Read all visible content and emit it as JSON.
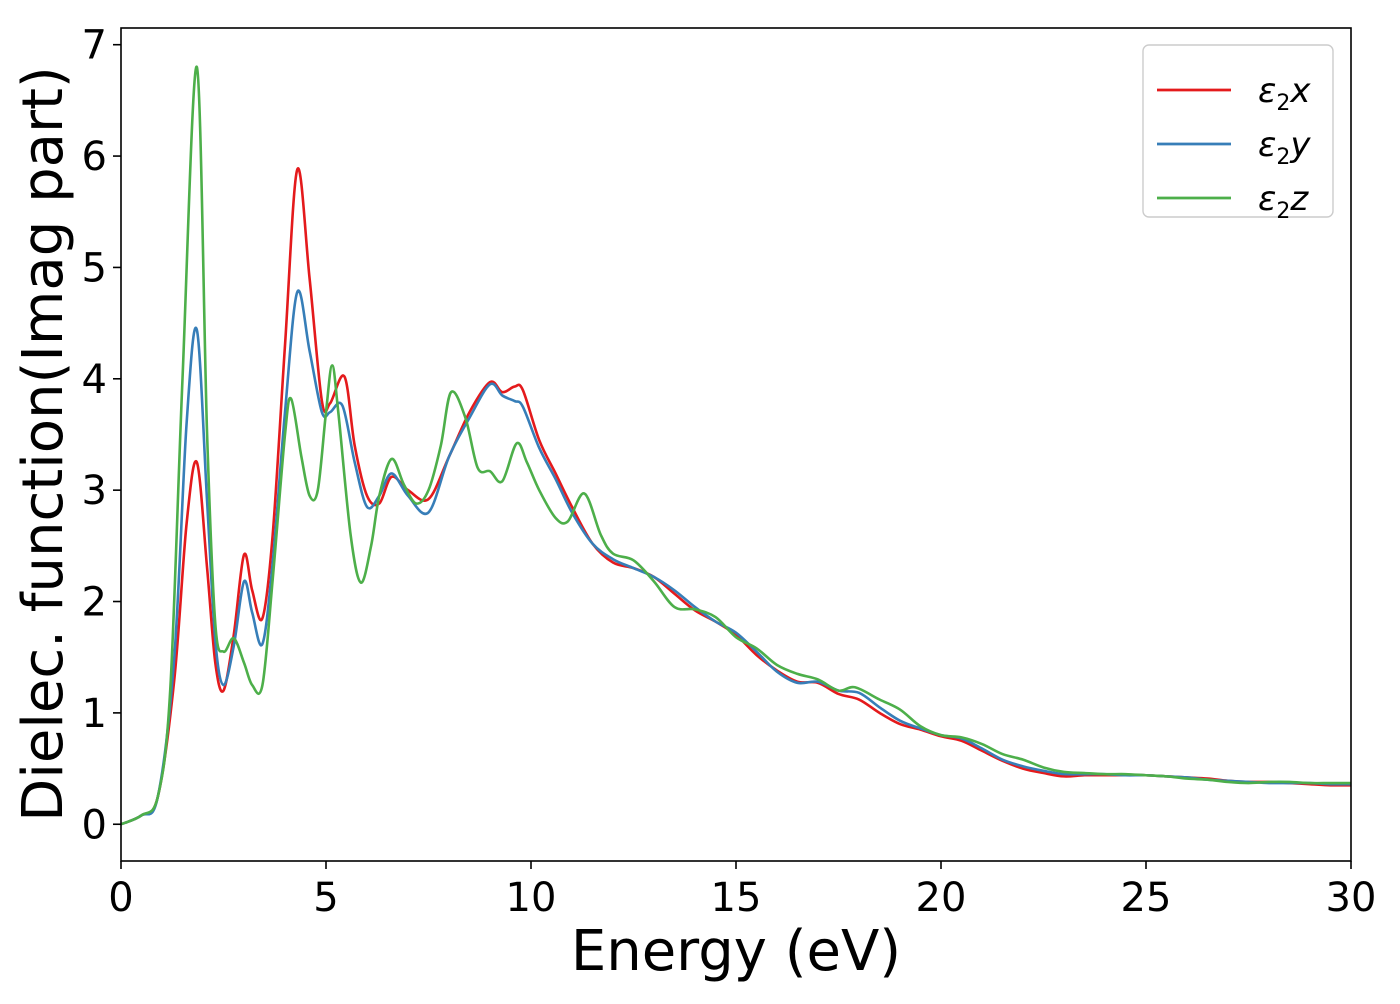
{
  "chart_data": {
    "type": "line",
    "title": "",
    "xlabel": "Energy (eV)",
    "ylabel": "Dielec. function(Imag part)",
    "xlim": [
      0,
      30
    ],
    "ylim": [
      -0.33,
      7.15
    ],
    "xticks": [
      0,
      5,
      10,
      15,
      20,
      25,
      30
    ],
    "yticks": [
      0,
      1,
      2,
      3,
      4,
      5,
      6,
      7
    ],
    "grid": false,
    "legend_position": "top-right",
    "series": [
      {
        "name": "ε2x",
        "symbol": "ε",
        "subscript": "2",
        "component": "x",
        "color": "#e41a1c",
        "points": [
          [
            0,
            0
          ],
          [
            0.5,
            0.08
          ],
          [
            0.9,
            0.25
          ],
          [
            1.3,
            1.3
          ],
          [
            1.6,
            2.7
          ],
          [
            1.85,
            3.25
          ],
          [
            2.1,
            2.3
          ],
          [
            2.3,
            1.45
          ],
          [
            2.5,
            1.2
          ],
          [
            2.75,
            1.7
          ],
          [
            3.0,
            2.42
          ],
          [
            3.2,
            2.1
          ],
          [
            3.45,
            1.85
          ],
          [
            3.7,
            2.6
          ],
          [
            4.0,
            4.3
          ],
          [
            4.3,
            5.88
          ],
          [
            4.6,
            4.9
          ],
          [
            4.9,
            3.8
          ],
          [
            5.1,
            3.78
          ],
          [
            5.45,
            4.02
          ],
          [
            5.7,
            3.4
          ],
          [
            6.0,
            2.95
          ],
          [
            6.3,
            2.88
          ],
          [
            6.6,
            3.12
          ],
          [
            7.0,
            3.0
          ],
          [
            7.5,
            2.92
          ],
          [
            8.0,
            3.3
          ],
          [
            8.5,
            3.7
          ],
          [
            9.0,
            3.97
          ],
          [
            9.3,
            3.88
          ],
          [
            9.6,
            3.93
          ],
          [
            9.8,
            3.9
          ],
          [
            10.2,
            3.45
          ],
          [
            10.6,
            3.15
          ],
          [
            11.0,
            2.85
          ],
          [
            11.5,
            2.52
          ],
          [
            12.0,
            2.35
          ],
          [
            12.5,
            2.3
          ],
          [
            13.0,
            2.22
          ],
          [
            13.5,
            2.07
          ],
          [
            14.0,
            1.92
          ],
          [
            14.5,
            1.82
          ],
          [
            15.0,
            1.7
          ],
          [
            15.5,
            1.52
          ],
          [
            16.0,
            1.38
          ],
          [
            16.5,
            1.28
          ],
          [
            17.0,
            1.27
          ],
          [
            17.5,
            1.17
          ],
          [
            18.0,
            1.12
          ],
          [
            18.5,
            1.0
          ],
          [
            19.0,
            0.9
          ],
          [
            19.5,
            0.85
          ],
          [
            20.0,
            0.79
          ],
          [
            20.5,
            0.75
          ],
          [
            21.0,
            0.66
          ],
          [
            21.5,
            0.57
          ],
          [
            22.0,
            0.5
          ],
          [
            22.5,
            0.46
          ],
          [
            23.0,
            0.43
          ],
          [
            23.5,
            0.44
          ],
          [
            24.0,
            0.44
          ],
          [
            24.5,
            0.44
          ],
          [
            25.0,
            0.44
          ],
          [
            25.5,
            0.43
          ],
          [
            26.0,
            0.42
          ],
          [
            26.5,
            0.41
          ],
          [
            27.0,
            0.39
          ],
          [
            27.5,
            0.38
          ],
          [
            28.0,
            0.38
          ],
          [
            28.5,
            0.37
          ],
          [
            29.0,
            0.36
          ],
          [
            29.5,
            0.35
          ],
          [
            30.0,
            0.35
          ]
        ]
      },
      {
        "name": "ε2y",
        "symbol": "ε",
        "subscript": "2",
        "component": "y",
        "color": "#377eb8",
        "points": [
          [
            0,
            0
          ],
          [
            0.5,
            0.08
          ],
          [
            0.9,
            0.25
          ],
          [
            1.3,
            1.5
          ],
          [
            1.6,
            3.6
          ],
          [
            1.85,
            4.44
          ],
          [
            2.1,
            2.9
          ],
          [
            2.3,
            1.65
          ],
          [
            2.5,
            1.25
          ],
          [
            2.75,
            1.6
          ],
          [
            3.0,
            2.18
          ],
          [
            3.2,
            1.9
          ],
          [
            3.45,
            1.62
          ],
          [
            3.7,
            2.35
          ],
          [
            4.0,
            3.7
          ],
          [
            4.3,
            4.78
          ],
          [
            4.6,
            4.25
          ],
          [
            4.9,
            3.7
          ],
          [
            5.1,
            3.7
          ],
          [
            5.4,
            3.76
          ],
          [
            5.7,
            3.25
          ],
          [
            6.0,
            2.85
          ],
          [
            6.3,
            2.95
          ],
          [
            6.6,
            3.15
          ],
          [
            7.0,
            2.95
          ],
          [
            7.5,
            2.8
          ],
          [
            8.0,
            3.3
          ],
          [
            8.5,
            3.65
          ],
          [
            9.0,
            3.95
          ],
          [
            9.3,
            3.85
          ],
          [
            9.6,
            3.8
          ],
          [
            9.8,
            3.75
          ],
          [
            10.2,
            3.38
          ],
          [
            10.6,
            3.1
          ],
          [
            11.0,
            2.8
          ],
          [
            11.5,
            2.52
          ],
          [
            12.0,
            2.38
          ],
          [
            12.5,
            2.3
          ],
          [
            13.0,
            2.22
          ],
          [
            13.5,
            2.1
          ],
          [
            14.0,
            1.95
          ],
          [
            14.5,
            1.82
          ],
          [
            15.0,
            1.72
          ],
          [
            15.5,
            1.55
          ],
          [
            16.0,
            1.37
          ],
          [
            16.5,
            1.27
          ],
          [
            17.0,
            1.28
          ],
          [
            17.5,
            1.2
          ],
          [
            18.0,
            1.18
          ],
          [
            18.5,
            1.05
          ],
          [
            19.0,
            0.93
          ],
          [
            19.5,
            0.86
          ],
          [
            20.0,
            0.8
          ],
          [
            20.5,
            0.77
          ],
          [
            21.0,
            0.68
          ],
          [
            21.5,
            0.58
          ],
          [
            22.0,
            0.52
          ],
          [
            22.5,
            0.48
          ],
          [
            23.0,
            0.45
          ],
          [
            23.5,
            0.45
          ],
          [
            24.0,
            0.45
          ],
          [
            24.5,
            0.44
          ],
          [
            25.0,
            0.44
          ],
          [
            25.5,
            0.43
          ],
          [
            26.0,
            0.42
          ],
          [
            26.5,
            0.4
          ],
          [
            27.0,
            0.39
          ],
          [
            27.5,
            0.38
          ],
          [
            28.0,
            0.37
          ],
          [
            28.5,
            0.37
          ],
          [
            29.0,
            0.37
          ],
          [
            29.5,
            0.36
          ],
          [
            30.0,
            0.36
          ]
        ]
      },
      {
        "name": "ε2z",
        "symbol": "ε",
        "subscript": "2",
        "component": "z",
        "color": "#4daf4a",
        "points": [
          [
            0,
            0
          ],
          [
            0.5,
            0.08
          ],
          [
            0.9,
            0.25
          ],
          [
            1.2,
            1.2
          ],
          [
            1.5,
            4.0
          ],
          [
            1.85,
            6.8
          ],
          [
            2.1,
            3.5
          ],
          [
            2.3,
            1.8
          ],
          [
            2.5,
            1.55
          ],
          [
            2.75,
            1.67
          ],
          [
            3.0,
            1.45
          ],
          [
            3.2,
            1.25
          ],
          [
            3.45,
            1.25
          ],
          [
            3.7,
            2.2
          ],
          [
            4.0,
            3.5
          ],
          [
            4.15,
            3.82
          ],
          [
            4.4,
            3.3
          ],
          [
            4.6,
            2.95
          ],
          [
            4.8,
            3.0
          ],
          [
            5.0,
            3.7
          ],
          [
            5.15,
            4.12
          ],
          [
            5.3,
            3.7
          ],
          [
            5.6,
            2.6
          ],
          [
            5.85,
            2.17
          ],
          [
            6.1,
            2.5
          ],
          [
            6.3,
            2.95
          ],
          [
            6.6,
            3.28
          ],
          [
            6.9,
            3.05
          ],
          [
            7.2,
            2.88
          ],
          [
            7.5,
            3.0
          ],
          [
            7.8,
            3.4
          ],
          [
            8.05,
            3.88
          ],
          [
            8.4,
            3.65
          ],
          [
            8.7,
            3.2
          ],
          [
            9.0,
            3.17
          ],
          [
            9.3,
            3.08
          ],
          [
            9.65,
            3.42
          ],
          [
            9.9,
            3.25
          ],
          [
            10.2,
            3.0
          ],
          [
            10.6,
            2.75
          ],
          [
            10.9,
            2.72
          ],
          [
            11.3,
            2.97
          ],
          [
            11.7,
            2.6
          ],
          [
            12.0,
            2.43
          ],
          [
            12.5,
            2.37
          ],
          [
            13.0,
            2.18
          ],
          [
            13.5,
            1.95
          ],
          [
            14.0,
            1.93
          ],
          [
            14.5,
            1.86
          ],
          [
            15.0,
            1.68
          ],
          [
            15.5,
            1.58
          ],
          [
            16.0,
            1.43
          ],
          [
            16.5,
            1.35
          ],
          [
            17.0,
            1.3
          ],
          [
            17.5,
            1.2
          ],
          [
            17.9,
            1.23
          ],
          [
            18.5,
            1.12
          ],
          [
            19.0,
            1.03
          ],
          [
            19.5,
            0.88
          ],
          [
            20.0,
            0.8
          ],
          [
            20.5,
            0.78
          ],
          [
            21.0,
            0.72
          ],
          [
            21.5,
            0.63
          ],
          [
            22.0,
            0.58
          ],
          [
            22.5,
            0.51
          ],
          [
            23.0,
            0.47
          ],
          [
            23.5,
            0.46
          ],
          [
            24.0,
            0.45
          ],
          [
            24.5,
            0.45
          ],
          [
            25.0,
            0.44
          ],
          [
            25.5,
            0.43
          ],
          [
            26.0,
            0.41
          ],
          [
            26.5,
            0.4
          ],
          [
            27.0,
            0.38
          ],
          [
            27.5,
            0.37
          ],
          [
            28.0,
            0.38
          ],
          [
            28.5,
            0.38
          ],
          [
            29.0,
            0.37
          ],
          [
            29.5,
            0.37
          ],
          [
            30.0,
            0.37
          ]
        ]
      }
    ]
  }
}
